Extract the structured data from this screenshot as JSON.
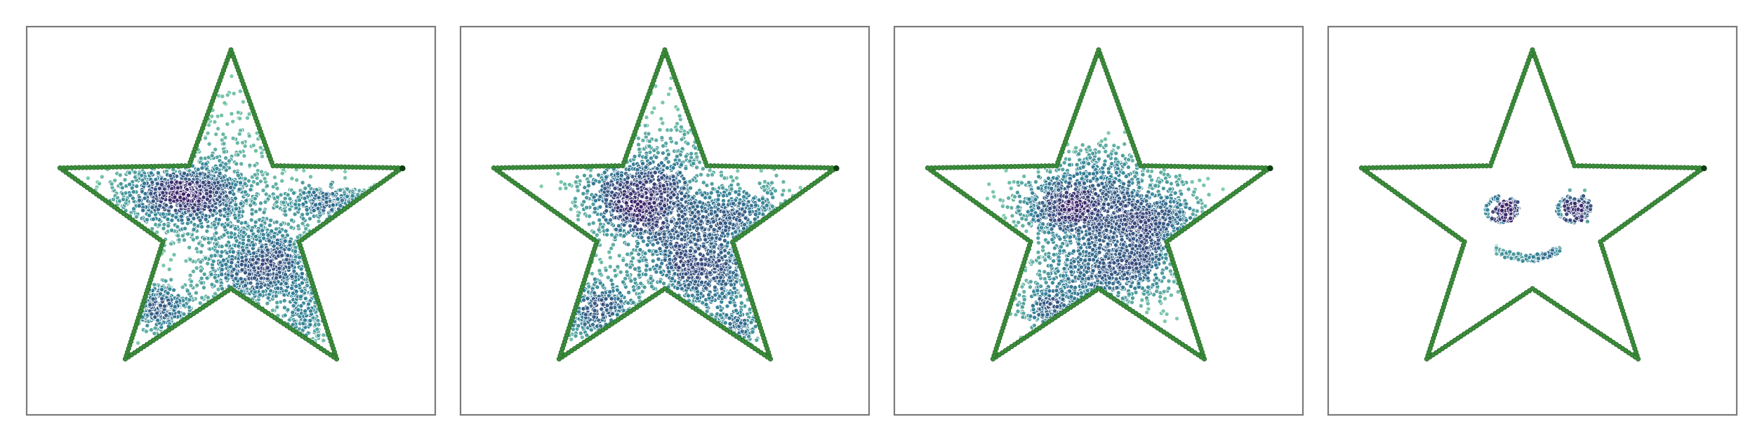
{
  "figure": {
    "panel_count": 4
  },
  "colors": {
    "outline_point": "#3a8f3a",
    "outline_point_edge": "#2e6b2e",
    "endpoint": "#0f3d14",
    "density_high": "#3a1f66",
    "density_mid": "#2f7f96",
    "density_low": "#7fd1a8",
    "point_edge": "#ffffff",
    "frame": "#7a7a7a"
  },
  "chart_data": [
    {
      "type": "scatter",
      "title": "",
      "xlim": [
        -1.0,
        1.0
      ],
      "ylim": [
        -1.0,
        1.0
      ],
      "grid": false,
      "axes_visible": false,
      "outline_series": {
        "shape": "five-pointed star",
        "outer_radius": 0.88,
        "inner_radius": 0.35,
        "points_per_edge": 34
      },
      "endpoint": {
        "x": 0.84,
        "y": 0.27
      },
      "clusters": [
        {
          "cx": -0.25,
          "cy": 0.13,
          "sx": 0.17,
          "sy": 0.08,
          "n": 900
        },
        {
          "cx": 0.17,
          "cy": -0.23,
          "sx": 0.17,
          "sy": 0.12,
          "n": 850
        },
        {
          "cx": -0.03,
          "cy": 0.2,
          "sx": 0.26,
          "sy": 0.3,
          "n": 500
        },
        {
          "cx": 0.55,
          "cy": 0.1,
          "sx": 0.15,
          "sy": 0.04,
          "n": 250
        },
        {
          "cx": -0.38,
          "cy": -0.45,
          "sx": 0.11,
          "sy": 0.06,
          "n": 280
        },
        {
          "cx": 0.36,
          "cy": -0.55,
          "sx": 0.06,
          "sy": 0.1,
          "n": 150
        }
      ]
    },
    {
      "type": "scatter",
      "title": "",
      "xlim": [
        -1.0,
        1.0
      ],
      "ylim": [
        -1.0,
        1.0
      ],
      "grid": false,
      "axes_visible": false,
      "outline_series": {
        "shape": "five-pointed star",
        "outer_radius": 0.88,
        "inner_radius": 0.35,
        "points_per_edge": 34
      },
      "endpoint": {
        "x": 0.84,
        "y": 0.27
      },
      "clusters": [
        {
          "cx": -0.15,
          "cy": 0.12,
          "sx": 0.15,
          "sy": 0.11,
          "n": 800
        },
        {
          "cx": 0.18,
          "cy": -0.22,
          "sx": 0.2,
          "sy": 0.15,
          "n": 900
        },
        {
          "cx": 0.35,
          "cy": 0.05,
          "sx": 0.18,
          "sy": 0.08,
          "n": 350
        },
        {
          "cx": -0.35,
          "cy": -0.45,
          "sx": 0.12,
          "sy": 0.1,
          "n": 300
        },
        {
          "cx": 0.03,
          "cy": 0.3,
          "sx": 0.15,
          "sy": 0.2,
          "n": 250
        },
        {
          "cx": 0.32,
          "cy": -0.6,
          "sx": 0.06,
          "sy": 0.08,
          "n": 120
        }
      ]
    },
    {
      "type": "scatter",
      "title": "",
      "xlim": [
        -1.0,
        1.0
      ],
      "ylim": [
        -1.0,
        1.0
      ],
      "grid": false,
      "axes_visible": false,
      "outline_series": {
        "shape": "five-pointed star",
        "outer_radius": 0.88,
        "inner_radius": 0.35,
        "points_per_edge": 34
      },
      "endpoint": {
        "x": 0.84,
        "y": 0.27
      },
      "clusters": [
        {
          "cx": -0.15,
          "cy": 0.08,
          "sx": 0.14,
          "sy": 0.1,
          "n": 800
        },
        {
          "cx": 0.25,
          "cy": -0.03,
          "sx": 0.17,
          "sy": 0.13,
          "n": 900
        },
        {
          "cx": 0.02,
          "cy": -0.27,
          "sx": 0.22,
          "sy": 0.1,
          "n": 650
        },
        {
          "cx": -0.2,
          "cy": -0.45,
          "sx": 0.1,
          "sy": 0.05,
          "n": 200
        },
        {
          "cx": 0.05,
          "cy": 0.28,
          "sx": 0.15,
          "sy": 0.08,
          "n": 200
        }
      ]
    },
    {
      "type": "scatter",
      "title": "",
      "xlim": [
        -1.0,
        1.0
      ],
      "ylim": [
        -1.0,
        1.0
      ],
      "grid": false,
      "axes_visible": false,
      "outline_series": {
        "shape": "five-pointed star",
        "outer_radius": 0.88,
        "inner_radius": 0.35,
        "points_per_edge": 34
      },
      "endpoint": {
        "x": 0.84,
        "y": 0.27
      },
      "face": {
        "eyes": [
          {
            "cx": -0.15,
            "cy": 0.06,
            "ring_radius": 0.075,
            "n_ring": 90,
            "n_pupil": 110
          },
          {
            "cx": 0.2,
            "cy": 0.06,
            "ring_radius": 0.075,
            "n_ring": 90,
            "n_pupil": 110
          }
        ],
        "smile": {
          "cx": -0.02,
          "cy": -0.13,
          "n": 150
        }
      }
    }
  ]
}
